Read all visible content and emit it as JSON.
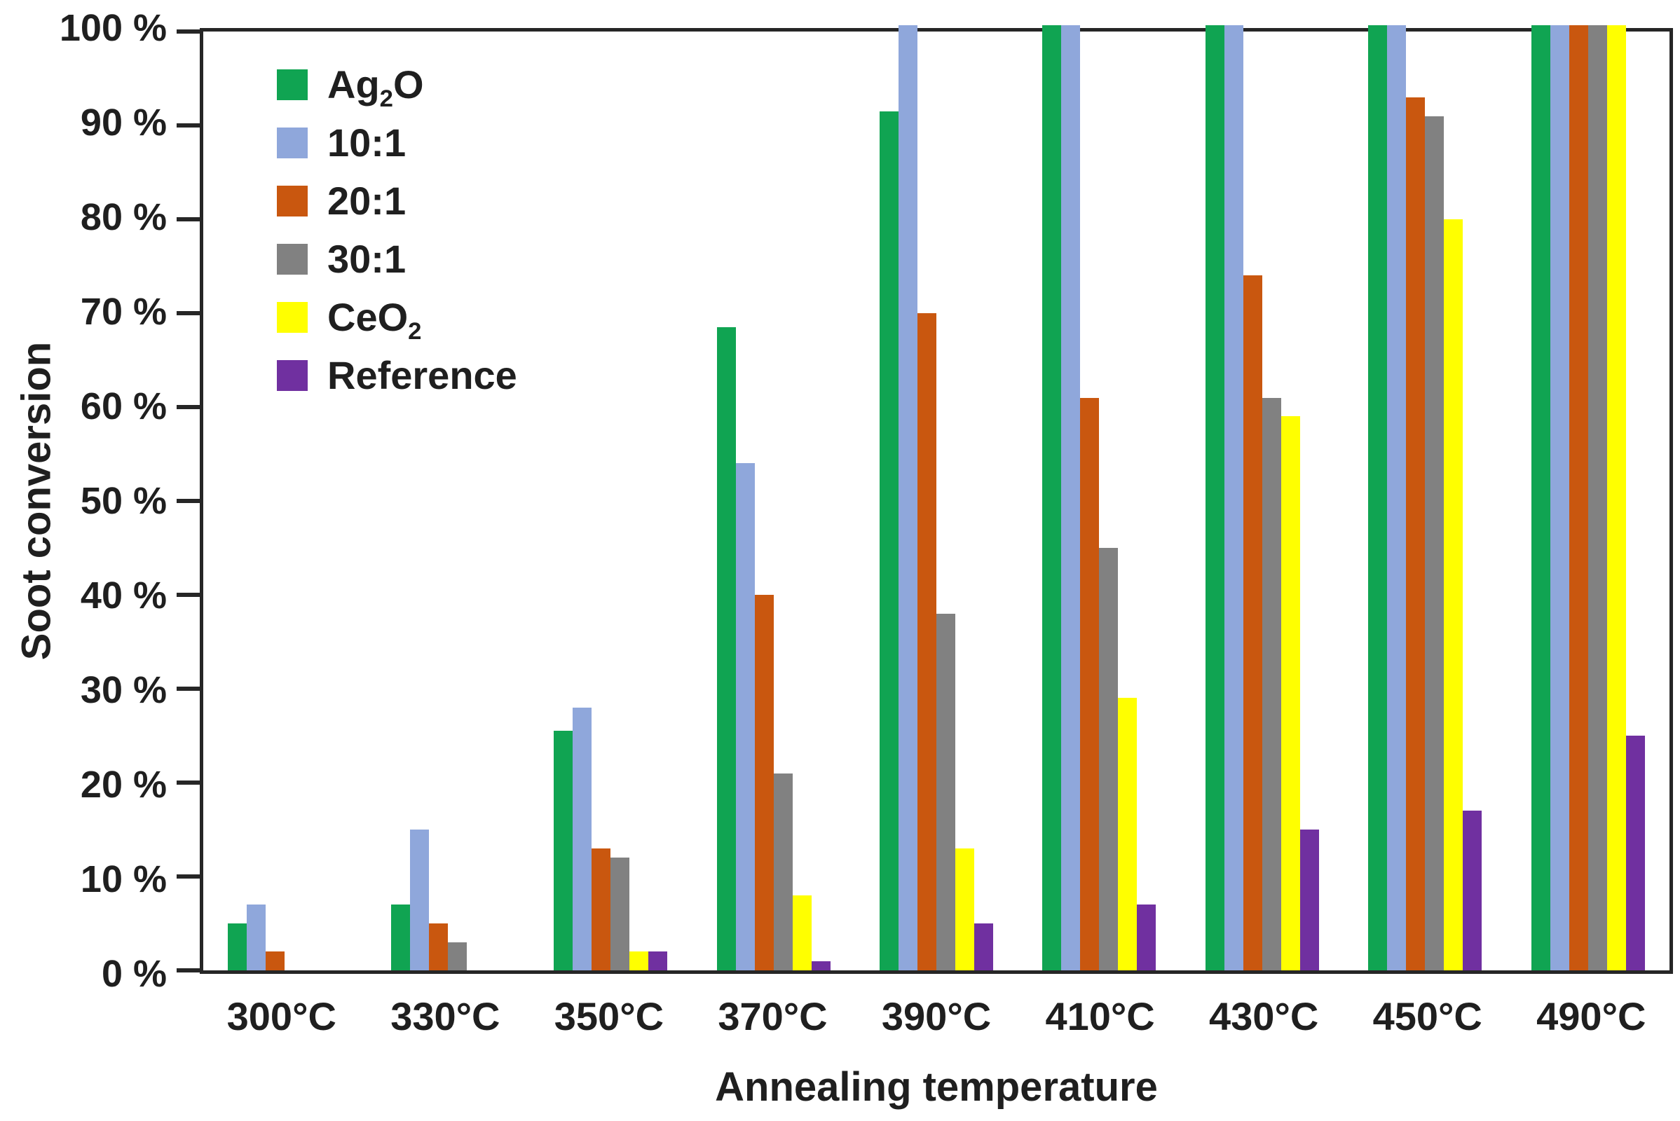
{
  "chart_data": {
    "type": "bar",
    "title": "",
    "xlabel": "Annealing temperature",
    "ylabel": "Soot conversion",
    "ylim": [
      0,
      100
    ],
    "ytick_step": 10,
    "ytick_suffix": " %",
    "grid": false,
    "legend_position": "top-left-inside",
    "frame_color": "#262626",
    "categories": [
      "300°C",
      "330°C",
      "350°C",
      "370°C",
      "390°C",
      "410°C",
      "430°C",
      "450°C",
      "490°C"
    ],
    "series": [
      {
        "name": "Ag2O",
        "label_pre": "Ag",
        "label_sub": "2",
        "label_post": "O",
        "color": "#10A452",
        "values": [
          5,
          7,
          25.5,
          68.5,
          91.5,
          100,
          100,
          100,
          100
        ]
      },
      {
        "name": "10:1",
        "label_pre": "10:1",
        "label_sub": "",
        "label_post": "",
        "color": "#8FA7DB",
        "values": [
          7,
          15,
          28,
          54,
          100,
          100,
          100,
          100,
          100
        ]
      },
      {
        "name": "20:1",
        "label_pre": "20:1",
        "label_sub": "",
        "label_post": "",
        "color": "#C9570F",
        "values": [
          2,
          5,
          13,
          40,
          70,
          61,
          74,
          93,
          100
        ]
      },
      {
        "name": "30:1",
        "label_pre": "30:1",
        "label_sub": "",
        "label_post": "",
        "color": "#818181",
        "values": [
          0,
          3,
          12,
          21,
          38,
          45,
          61,
          91,
          100
        ]
      },
      {
        "name": "CeO2",
        "label_pre": "CeO",
        "label_sub": "2",
        "label_post": "",
        "color": "#FFFF00",
        "values": [
          0,
          0,
          2,
          8,
          13,
          29,
          59,
          80,
          100
        ]
      },
      {
        "name": "Reference",
        "label_pre": "Reference",
        "label_sub": "",
        "label_post": "",
        "color": "#7030A0",
        "values": [
          0,
          0,
          2,
          1,
          5,
          7,
          15,
          17,
          25
        ]
      }
    ]
  }
}
